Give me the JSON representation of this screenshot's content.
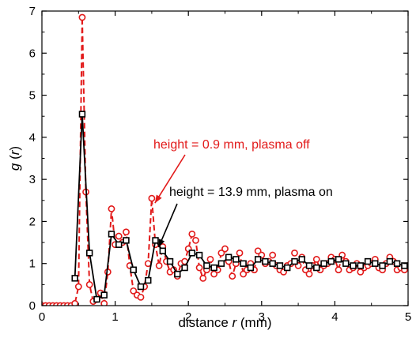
{
  "chart_data": {
    "type": "line",
    "xlabel": "distance r (mm)",
    "xlabel_parts": [
      "distance ",
      "r",
      " (mm)"
    ],
    "ylabel": "g (r)",
    "ylabel_parts": [
      "g",
      " (",
      "r",
      ")"
    ],
    "xlim": [
      0,
      5
    ],
    "ylim": [
      0,
      7
    ],
    "xticks": [
      "0",
      "1",
      "2",
      "3",
      "4",
      "5"
    ],
    "yticks": [
      "0",
      "1",
      "2",
      "3",
      "4",
      "5",
      "6",
      "7"
    ],
    "grid": false,
    "series": [
      {
        "color": "#e21a1a",
        "marker": "circle",
        "line": "dashed",
        "x": [
          0.0,
          0.05,
          0.1,
          0.15,
          0.2,
          0.25,
          0.3,
          0.35,
          0.4,
          0.45,
          0.5,
          0.55,
          0.6,
          0.65,
          0.7,
          0.75,
          0.8,
          0.85,
          0.9,
          0.95,
          1.0,
          1.05,
          1.1,
          1.15,
          1.2,
          1.25,
          1.3,
          1.35,
          1.4,
          1.45,
          1.5,
          1.55,
          1.6,
          1.65,
          1.7,
          1.75,
          1.8,
          1.85,
          1.9,
          1.95,
          2.0,
          2.05,
          2.1,
          2.15,
          2.2,
          2.25,
          2.3,
          2.35,
          2.4,
          2.45,
          2.5,
          2.55,
          2.6,
          2.65,
          2.7,
          2.75,
          2.8,
          2.85,
          2.9,
          2.95,
          3.0,
          3.05,
          3.1,
          3.15,
          3.2,
          3.25,
          3.3,
          3.35,
          3.4,
          3.45,
          3.5,
          3.55,
          3.6,
          3.65,
          3.7,
          3.75,
          3.8,
          3.85,
          3.9,
          3.95,
          4.0,
          4.05,
          4.1,
          4.15,
          4.2,
          4.25,
          4.3,
          4.35,
          4.4,
          4.45,
          4.5,
          4.55,
          4.6,
          4.65,
          4.7,
          4.75,
          4.8,
          4.85,
          4.9,
          4.95,
          5.0
        ],
        "y": [
          0,
          0,
          0,
          0,
          0,
          0,
          0,
          0,
          0,
          0.05,
          0.45,
          6.85,
          2.7,
          0.5,
          0.1,
          0.15,
          0.3,
          0.05,
          0.8,
          2.3,
          1.45,
          1.65,
          1.5,
          1.75,
          0.95,
          0.35,
          0.25,
          0.2,
          0.45,
          1.0,
          2.55,
          1.45,
          0.95,
          1.4,
          1.05,
          0.8,
          0.85,
          0.7,
          1.0,
          1.05,
          1.35,
          1.7,
          1.55,
          0.9,
          0.65,
          0.85,
          1.1,
          0.75,
          0.85,
          1.25,
          1.35,
          1.05,
          0.7,
          1.0,
          1.25,
          0.75,
          0.85,
          1.0,
          0.85,
          1.3,
          1.2,
          1.0,
          1.05,
          1.2,
          0.95,
          0.85,
          0.8,
          0.95,
          1.0,
          1.25,
          0.95,
          1.15,
          0.85,
          0.75,
          0.95,
          1.1,
          0.85,
          0.95,
          1.0,
          1.15,
          1.1,
          0.85,
          1.2,
          1.05,
          0.85,
          0.9,
          1.0,
          0.8,
          0.9,
          0.95,
          1.0,
          1.1,
          0.9,
          0.85,
          1.0,
          1.15,
          1.05,
          0.85,
          0.9,
          0.85,
          0.95
        ]
      },
      {
        "color": "#000000",
        "marker": "square",
        "line": "solid",
        "x": [
          0.45,
          0.55,
          0.65,
          0.75,
          0.85,
          0.95,
          1.05,
          1.15,
          1.25,
          1.35,
          1.45,
          1.55,
          1.65,
          1.75,
          1.85,
          1.95,
          2.05,
          2.15,
          2.25,
          2.35,
          2.45,
          2.55,
          2.65,
          2.75,
          2.85,
          2.95,
          3.05,
          3.15,
          3.25,
          3.35,
          3.45,
          3.55,
          3.65,
          3.75,
          3.85,
          3.95,
          4.05,
          4.15,
          4.25,
          4.35,
          4.45,
          4.55,
          4.65,
          4.75,
          4.85,
          4.95
        ],
        "y": [
          0.65,
          4.55,
          1.25,
          0.15,
          0.25,
          1.7,
          1.45,
          1.55,
          0.85,
          0.45,
          0.6,
          1.55,
          1.3,
          1.05,
          0.75,
          0.9,
          1.25,
          1.2,
          0.95,
          0.9,
          1.0,
          1.15,
          1.1,
          1.0,
          0.9,
          1.1,
          1.05,
          1.0,
          0.95,
          0.9,
          1.05,
          1.1,
          0.95,
          0.9,
          1.0,
          1.05,
          1.1,
          1.0,
          0.95,
          0.95,
          1.05,
          1.0,
          0.95,
          1.05,
          1.0,
          0.95
        ]
      }
    ],
    "annotations": [
      {
        "text": "height  = 0.9 mm, plasma off",
        "color": "#e21a1a",
        "target": [
          1.5,
          2.55
        ]
      },
      {
        "text": "height  = 13.9 mm, plasma on",
        "color": "#000000",
        "target": [
          1.55,
          1.5
        ]
      }
    ]
  }
}
